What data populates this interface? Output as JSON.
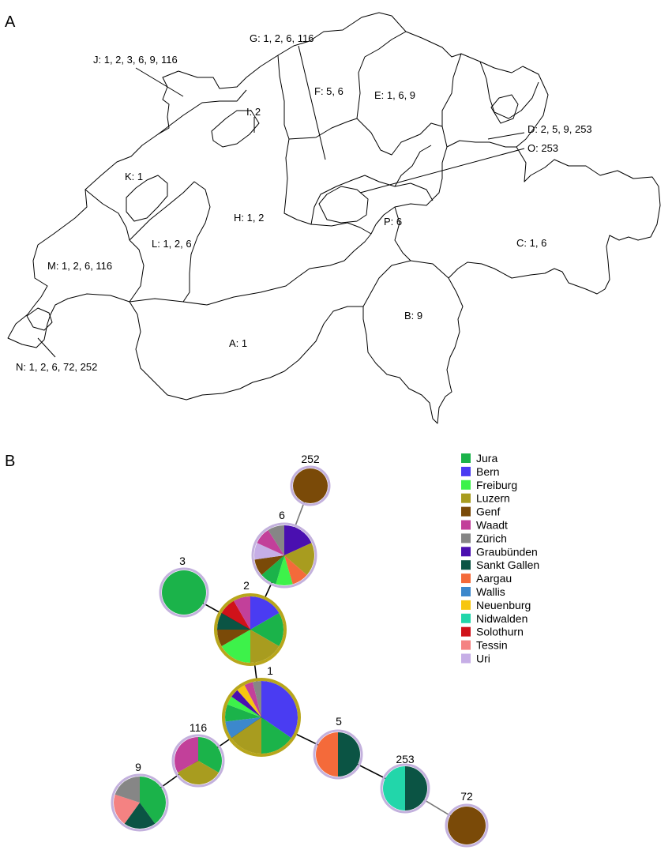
{
  "panel_a": {
    "letter": "A",
    "map_labels": [
      {
        "id": "A",
        "text": "A: 1"
      },
      {
        "id": "B",
        "text": "B: 9"
      },
      {
        "id": "C",
        "text": "C: 1, 6"
      },
      {
        "id": "D",
        "text": "D: 2, 5, 9, 253"
      },
      {
        "id": "E",
        "text": "E: 1, 6, 9"
      },
      {
        "id": "F",
        "text": "F: 5, 6"
      },
      {
        "id": "G",
        "text": "G: 1, 2, 6, 116"
      },
      {
        "id": "H",
        "text": "H: 1, 2"
      },
      {
        "id": "I",
        "text": "I: 2"
      },
      {
        "id": "J",
        "text": "J: 1, 2, 3, 6, 9, 116"
      },
      {
        "id": "K",
        "text": "K: 1"
      },
      {
        "id": "L",
        "text": "L: 1, 2, 6"
      },
      {
        "id": "M",
        "text": "M: 1, 2, 6, 116"
      },
      {
        "id": "N",
        "text": "N: 1, 2, 6, 72, 252"
      },
      {
        "id": "O",
        "text": "O: 253"
      },
      {
        "id": "P",
        "text": "P: 6"
      }
    ]
  },
  "panel_b": {
    "letter": "B",
    "legend": [
      {
        "name": "Jura",
        "color": "#1bb34a"
      },
      {
        "name": "Bern",
        "color": "#4a3cf2"
      },
      {
        "name": "Freiburg",
        "color": "#3df24a"
      },
      {
        "name": "Luzern",
        "color": "#a89c1f"
      },
      {
        "name": "Genf",
        "color": "#7a4a08"
      },
      {
        "name": "Waadt",
        "color": "#c2409a"
      },
      {
        "name": "Zürich",
        "color": "#868686"
      },
      {
        "name": "Graubünden",
        "color": "#4a0fb0"
      },
      {
        "name": "Sankt Gallen",
        "color": "#0b5444"
      },
      {
        "name": "Aargau",
        "color": "#f46a3a"
      },
      {
        "name": "Wallis",
        "color": "#3c88cc"
      },
      {
        "name": "Neuenburg",
        "color": "#f7c60f"
      },
      {
        "name": "Nidwalden",
        "color": "#22d6aa"
      },
      {
        "name": "Solothurn",
        "color": "#d0121a"
      },
      {
        "name": "Tessin",
        "color": "#f48282"
      },
      {
        "name": "Uri",
        "color": "#c6aee6"
      }
    ],
    "nodes": [
      {
        "label": "252",
        "slices": [
          {
            "canton": "Genf",
            "value": 1
          }
        ]
      },
      {
        "label": "6",
        "slices": [
          {
            "canton": "Graubünden",
            "value": 2
          },
          {
            "canton": "Luzern",
            "value": 2
          },
          {
            "canton": "Aargau",
            "value": 1
          },
          {
            "canton": "Freiburg",
            "value": 1
          },
          {
            "canton": "Jura",
            "value": 1
          },
          {
            "canton": "Genf",
            "value": 1
          },
          {
            "canton": "Uri",
            "value": 1
          },
          {
            "canton": "Waadt",
            "value": 1
          },
          {
            "canton": "Zürich",
            "value": 1
          }
        ]
      },
      {
        "label": "3",
        "slices": [
          {
            "canton": "Jura",
            "value": 1
          }
        ]
      },
      {
        "label": "2",
        "slices": [
          {
            "canton": "Bern",
            "value": 2
          },
          {
            "canton": "Jura",
            "value": 2
          },
          {
            "canton": "Luzern",
            "value": 2
          },
          {
            "canton": "Freiburg",
            "value": 2
          },
          {
            "canton": "Genf",
            "value": 1
          },
          {
            "canton": "Sankt Gallen",
            "value": 1
          },
          {
            "canton": "Solothurn",
            "value": 1
          },
          {
            "canton": "Waadt",
            "value": 1
          }
        ]
      },
      {
        "label": "1",
        "slices": [
          {
            "canton": "Bern",
            "value": 9
          },
          {
            "canton": "Jura",
            "value": 4
          },
          {
            "canton": "Luzern",
            "value": 4
          },
          {
            "canton": "Wallis",
            "value": 2
          },
          {
            "canton": "Jura",
            "value": 2
          },
          {
            "canton": "Freiburg",
            "value": 1
          },
          {
            "canton": "Graubünden",
            "value": 1
          },
          {
            "canton": "Neuenburg",
            "value": 1
          },
          {
            "canton": "Waadt",
            "value": 1
          },
          {
            "canton": "Zürich",
            "value": 1
          }
        ]
      },
      {
        "label": "116",
        "slices": [
          {
            "canton": "Jura",
            "value": 1
          },
          {
            "canton": "Luzern",
            "value": 1
          },
          {
            "canton": "Waadt",
            "value": 1
          }
        ]
      },
      {
        "label": "5",
        "slices": [
          {
            "canton": "Aargau",
            "value": 1
          },
          {
            "canton": "Sankt Gallen",
            "value": 1
          }
        ]
      },
      {
        "label": "253",
        "slices": [
          {
            "canton": "Nidwalden",
            "value": 1
          },
          {
            "canton": "Sankt Gallen",
            "value": 1
          }
        ]
      },
      {
        "label": "9",
        "slices": [
          {
            "canton": "Jura",
            "value": 2
          },
          {
            "canton": "Sankt Gallen",
            "value": 1
          },
          {
            "canton": "Tessin",
            "value": 1
          },
          {
            "canton": "Zürich",
            "value": 1
          }
        ]
      },
      {
        "label": "72",
        "slices": [
          {
            "canton": "Genf",
            "value": 1
          }
        ]
      }
    ],
    "edges": [
      [
        "252",
        "6"
      ],
      [
        "6",
        "2"
      ],
      [
        "3",
        "2"
      ],
      [
        "2",
        "1"
      ],
      [
        "1",
        "116"
      ],
      [
        "116",
        "9"
      ],
      [
        "1",
        "5"
      ],
      [
        "5",
        "253"
      ],
      [
        "253",
        "72"
      ]
    ]
  }
}
